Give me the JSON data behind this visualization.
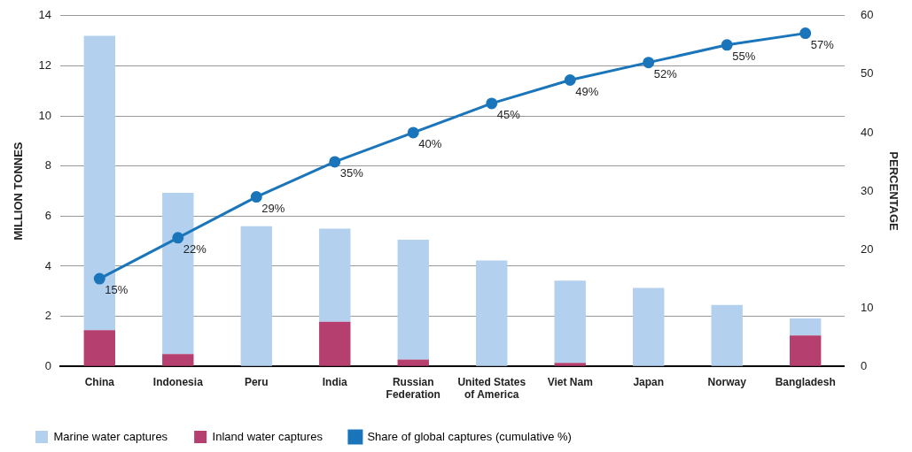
{
  "chart_data": {
    "type": "bar",
    "stacked": true,
    "ylabel": "MILLION TONNES",
    "y2label": "PERCENTAGE",
    "categories": [
      "China",
      "Indonesia",
      "Peru",
      "India",
      "Russian Federation",
      "United States of America",
      "Viet Nam",
      "Japan",
      "Norway",
      "Bangladesh"
    ],
    "series": [
      {
        "name": "Inland water captures",
        "color": "#b5406f",
        "values": [
          1.45,
          0.49,
          0,
          1.78,
          0.27,
          0,
          0.14,
          0,
          0,
          1.23
        ]
      },
      {
        "name": "Marine water captures",
        "color": "#b3d1ee",
        "values": [
          11.75,
          6.44,
          5.6,
          3.72,
          4.79,
          4.23,
          3.28,
          3.13,
          2.45,
          0.68
        ]
      },
      {
        "name": "Share of global captures (cumulative %)",
        "type": "line",
        "axis": "y2",
        "color": "#1a75bb",
        "marker": "circle",
        "values": [
          15,
          22,
          29,
          35,
          40,
          45,
          49,
          52,
          55,
          57
        ],
        "value_labels": [
          "15%",
          "22%",
          "29%",
          "35%",
          "40%",
          "45%",
          "49%",
          "52%",
          "55%",
          "57%"
        ]
      }
    ],
    "ylim": [
      0,
      14
    ],
    "yticks": [
      0,
      2,
      4,
      6,
      8,
      10,
      12,
      14
    ],
    "y2lim": [
      0,
      60
    ],
    "y2ticks": [
      0,
      10,
      20,
      30,
      40,
      50,
      60
    ],
    "grid": "y",
    "legend": "bottom"
  }
}
